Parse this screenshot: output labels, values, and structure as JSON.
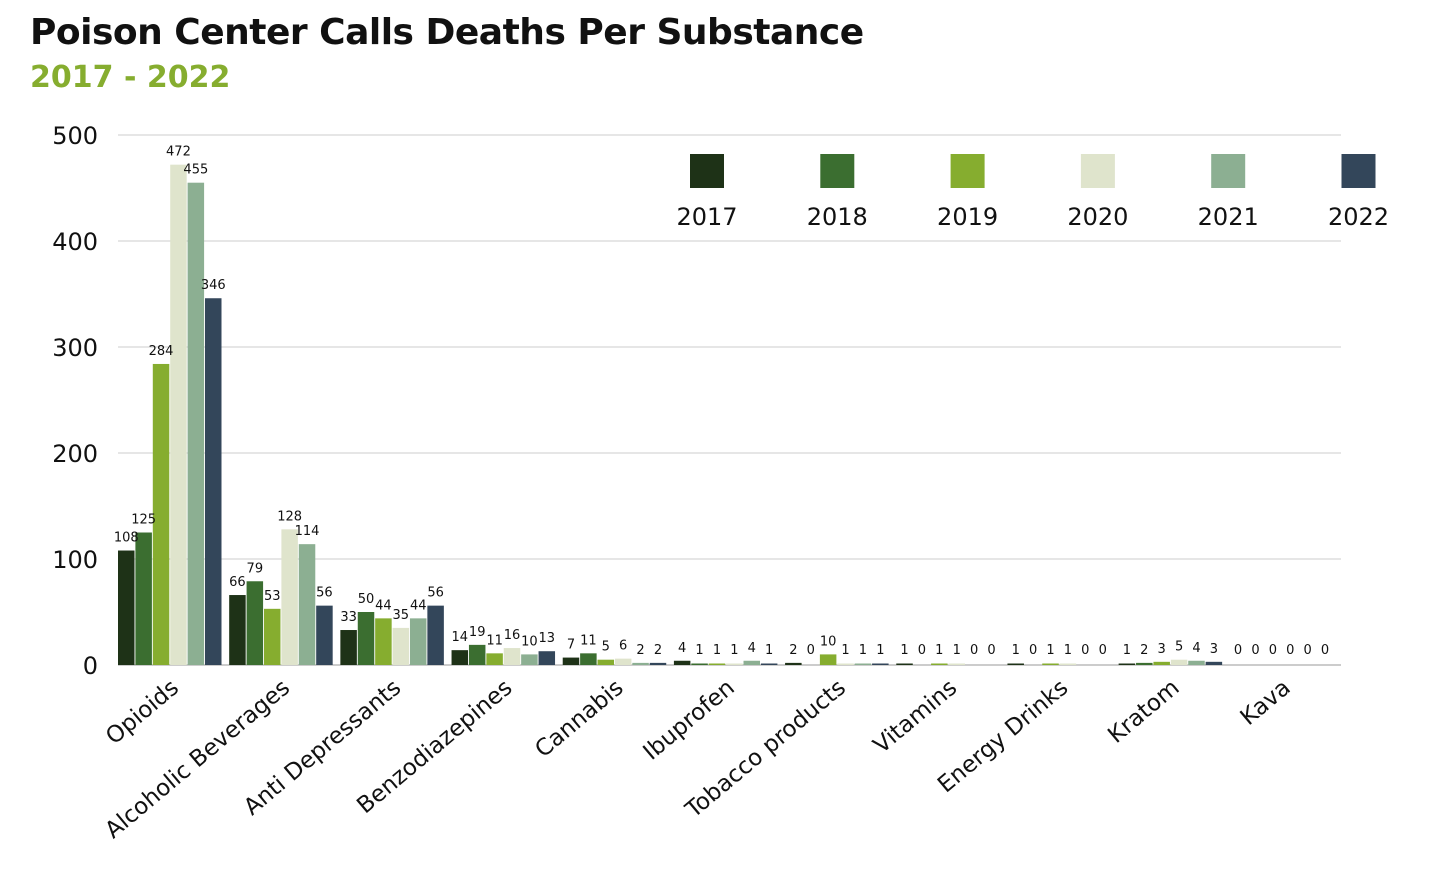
{
  "chart_data": {
    "type": "bar",
    "title": "Poison Center Calls Deaths Per Substance",
    "subtitle": "2017 - 2022",
    "xlabel": "",
    "ylabel": "",
    "ylim": [
      0,
      500
    ],
    "yticks": [
      "0",
      "100",
      "200",
      "300",
      "400",
      "500"
    ],
    "grid": true,
    "legend_placement": "top-right",
    "categories": [
      "Opioids",
      "Alcoholic Beverages",
      "Anti Depressants",
      "Benzodiazepines",
      "Cannabis",
      "Ibuprofen",
      "Tobacco products",
      "Vitamins",
      "Energy Drinks",
      "Kratom",
      "Kava"
    ],
    "series": [
      {
        "name": "2017",
        "color": "#1e3217",
        "values": [
          108,
          66,
          33,
          14,
          7,
          4,
          2,
          1,
          1,
          1,
          0
        ]
      },
      {
        "name": "2018",
        "color": "#3b6e30",
        "values": [
          125,
          79,
          50,
          19,
          11,
          1,
          0,
          0,
          0,
          2,
          0
        ]
      },
      {
        "name": "2019",
        "color": "#86ad2f",
        "values": [
          284,
          53,
          44,
          11,
          5,
          1,
          10,
          1,
          1,
          3,
          0
        ]
      },
      {
        "name": "2020",
        "color": "#dfe4cc",
        "values": [
          472,
          128,
          35,
          16,
          6,
          1,
          1,
          1,
          1,
          5,
          0
        ]
      },
      {
        "name": "2021",
        "color": "#8caf92",
        "values": [
          455,
          114,
          44,
          10,
          2,
          4,
          1,
          0,
          0,
          4,
          0
        ]
      },
      {
        "name": "2022",
        "color": "#33465a",
        "values": [
          346,
          56,
          56,
          13,
          2,
          1,
          1,
          0,
          0,
          3,
          0
        ]
      }
    ]
  },
  "colors": {
    "title": "#111111",
    "subtitle": "#86ad2f",
    "grid": "#cccccc"
  }
}
